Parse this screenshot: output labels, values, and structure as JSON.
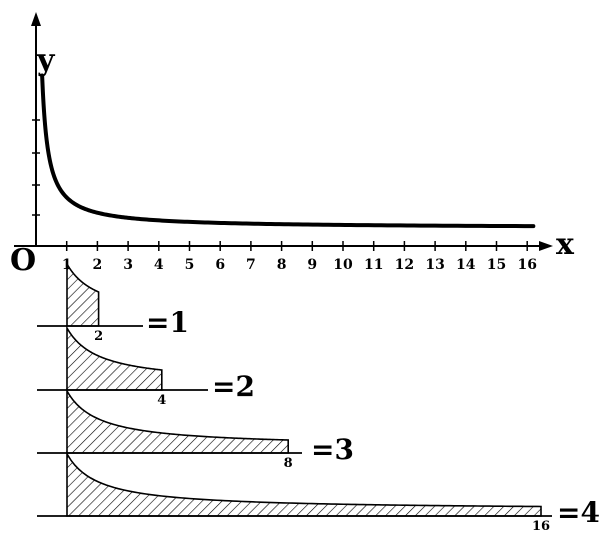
{
  "chart_data": {
    "type": "line",
    "title": "",
    "xlabel": "x",
    "ylabel": "y",
    "origin_label": "O",
    "x_ticks": [
      "1",
      "2",
      "3",
      "4",
      "5",
      "6",
      "7",
      "8",
      "9",
      "10",
      "11",
      "12",
      "13",
      "14",
      "15",
      "16"
    ],
    "xlim": [
      0,
      16.5
    ],
    "grid": false,
    "curve": {
      "function": "1/x",
      "x_start": 0.2,
      "x_end": 16.2
    },
    "panels": [
      {
        "lower": 1,
        "upper": 2,
        "upper_label": "2",
        "equation": "=1"
      },
      {
        "lower": 1,
        "upper": 4,
        "upper_label": "4",
        "equation": "=2"
      },
      {
        "lower": 1,
        "upper": 8,
        "upper_label": "8",
        "equation": "=3"
      },
      {
        "lower": 1,
        "upper": 16,
        "upper_label": "16",
        "equation": "=4"
      }
    ]
  }
}
